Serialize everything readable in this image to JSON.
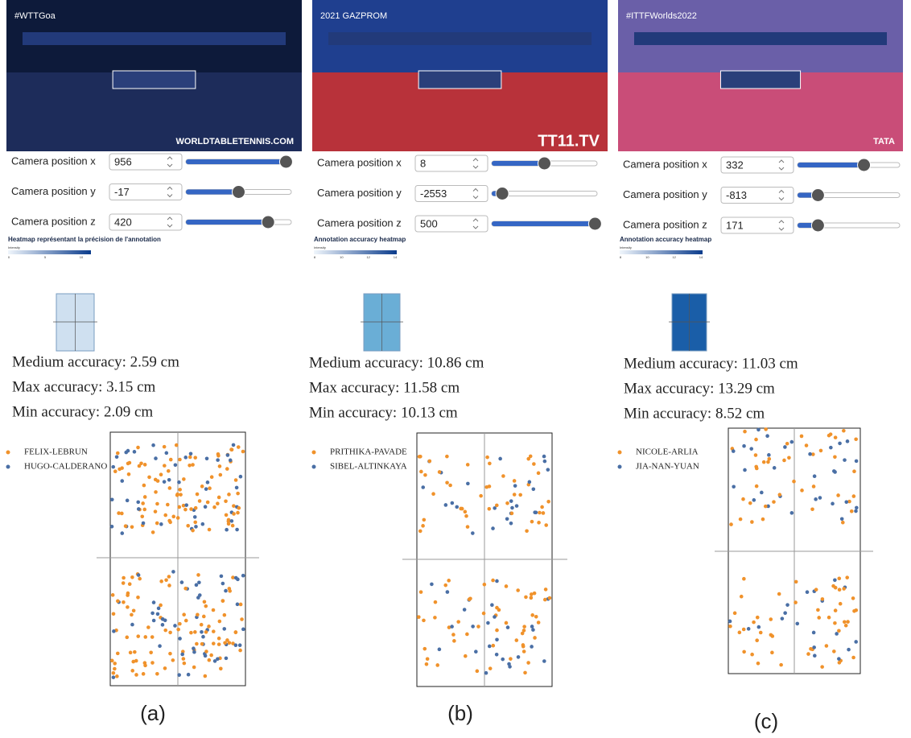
{
  "panels": [
    {
      "caption": "(a)",
      "video_texts": [
        "#WTTGoa",
        "WORLDTABLETENNIS.COM"
      ],
      "camera": [
        {
          "label": "Camera position x",
          "value": 956
        },
        {
          "label": "Camera position y",
          "value": -17
        },
        {
          "label": "Camera position z",
          "value": 420
        }
      ],
      "heatmap_title": "Heatmap représentant la précision de l'annotation",
      "heatmap_axis": "Intensity",
      "heatmap_ticks": [
        0,
        5,
        10
      ],
      "stats": [
        "Medium accuracy: 2.59 cm",
        "Max accuracy: 3.15 cm",
        "Min accuracy: 2.09 cm"
      ],
      "legend": [
        "FELIX-LEBRUN",
        "HUGO-CALDERANO"
      ]
    },
    {
      "caption": "(b)",
      "video_texts": [
        "2021 GAZPROM",
        "TT11.TV"
      ],
      "camera": [
        {
          "label": "Camera position x",
          "value": 8
        },
        {
          "label": "Camera position y",
          "value": -2553
        },
        {
          "label": "Camera position z",
          "value": 500
        }
      ],
      "heatmap_title": "Annotation accuracy heatmap",
      "heatmap_axis": "Intensity",
      "heatmap_ticks": [
        8,
        10,
        12,
        14
      ],
      "stats": [
        "Medium accuracy: 10.86 cm",
        "Max accuracy: 11.58 cm",
        "Min accuracy: 10.13 cm"
      ],
      "legend": [
        "PRITHIKA-PAVADE",
        "SIBEL-ALTINKAYA"
      ]
    },
    {
      "caption": "(c)",
      "video_texts": [
        "#ITTFWorlds2022",
        "TATA"
      ],
      "camera": [
        {
          "label": "Camera position x",
          "value": 332
        },
        {
          "label": "Camera position y",
          "value": -813
        },
        {
          "label": "Camera position z",
          "value": 171
        }
      ],
      "heatmap_title": "Annotation accuracy heatmap",
      "heatmap_axis": "Intensity",
      "heatmap_ticks": [
        8,
        10,
        12,
        14
      ],
      "stats": [
        "Medium accuracy: 11.03 cm",
        "Max accuracy: 13.29 cm",
        "Min accuracy: 8.52 cm"
      ],
      "legend": [
        "NICOLE-ARLIA",
        "JIA-NAN-YUAN"
      ]
    }
  ]
}
